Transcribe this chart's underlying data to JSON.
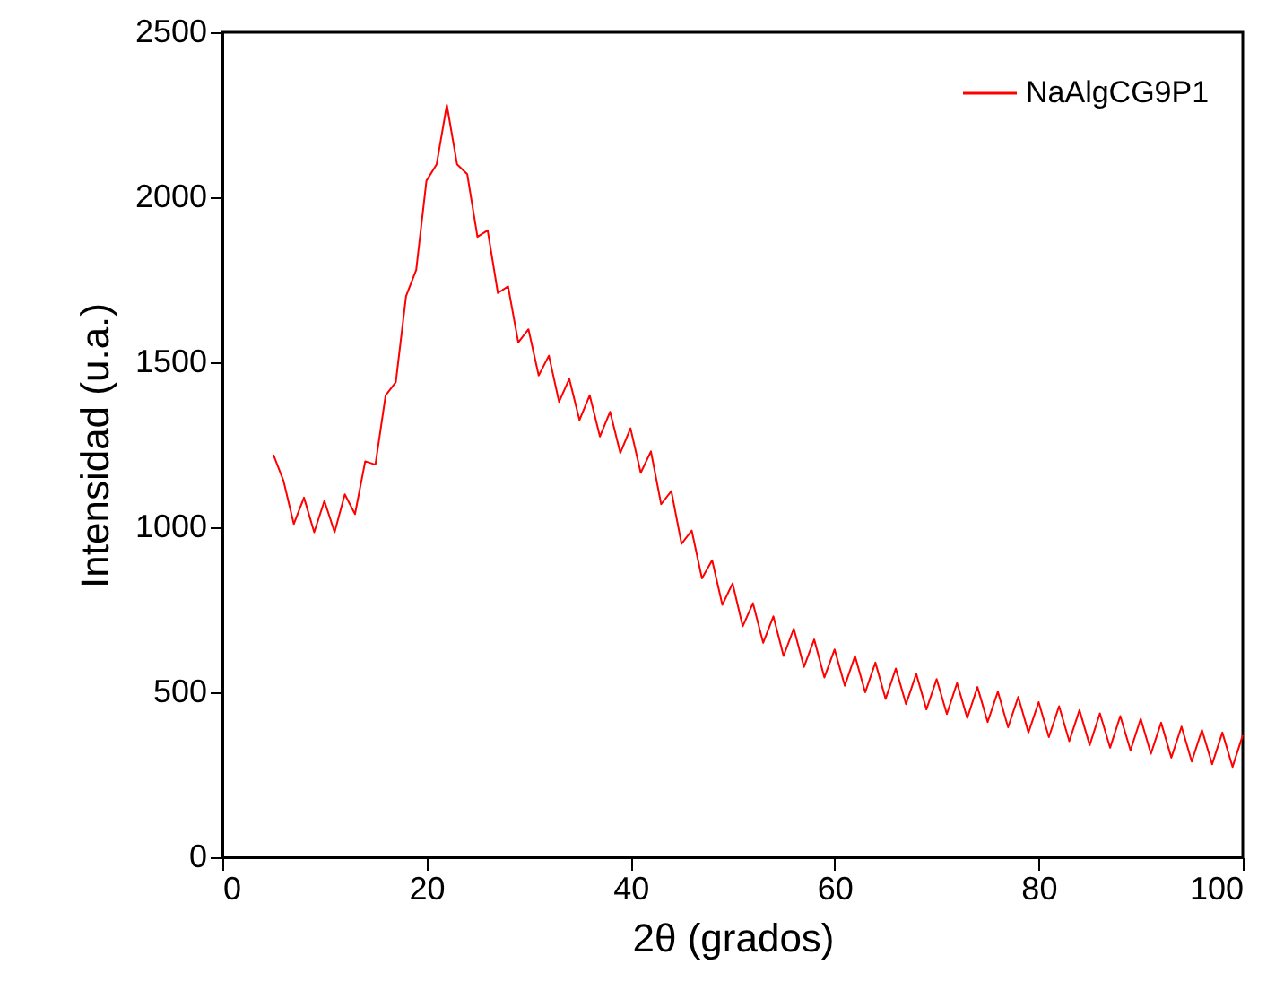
{
  "chart_data": {
    "type": "line",
    "xlabel": "2θ (grados)",
    "ylabel": "Intensidad (u.a.)",
    "xlim": [
      0,
      100
    ],
    "xticks": [
      0,
      20,
      40,
      60,
      80,
      100
    ],
    "ylim": [
      0,
      2500
    ],
    "yticks": [
      0,
      500,
      1000,
      1500,
      2000,
      2500
    ],
    "grid": false,
    "legend": "top right",
    "series": [
      {
        "name": "NaAlgCG9P1",
        "color": "#ff0000",
        "x": [
          5,
          6,
          7,
          8,
          9,
          10,
          11,
          12,
          13,
          14,
          15,
          16,
          17,
          18,
          19,
          20,
          21,
          22,
          23,
          24,
          25,
          26,
          27,
          28,
          29,
          30,
          31,
          32,
          33,
          34,
          35,
          36,
          37,
          38,
          39,
          40,
          41,
          42,
          43,
          44,
          45,
          46,
          47,
          48,
          49,
          50,
          51,
          52,
          53,
          54,
          55,
          56,
          57,
          58,
          59,
          60,
          61,
          62,
          63,
          64,
          65,
          66,
          67,
          68,
          69,
          70,
          71,
          72,
          73,
          74,
          75,
          76,
          77,
          78,
          79,
          80,
          81,
          82,
          83,
          84,
          85,
          86,
          87,
          88,
          89,
          90,
          91,
          92,
          93,
          94,
          95,
          96,
          97,
          98,
          99,
          100
        ],
        "values": [
          1220,
          1140,
          1010,
          1090,
          985,
          1080,
          985,
          1100,
          1040,
          1200,
          1190,
          1400,
          1440,
          1700,
          1780,
          2050,
          2100,
          2280,
          2100,
          2070,
          1880,
          1900,
          1710,
          1730,
          1560,
          1600,
          1460,
          1520,
          1380,
          1450,
          1325,
          1400,
          1275,
          1350,
          1225,
          1300,
          1165,
          1230,
          1070,
          1110,
          950,
          990,
          845,
          900,
          765,
          830,
          700,
          770,
          650,
          730,
          610,
          693,
          577,
          660,
          545,
          630,
          520,
          610,
          500,
          590,
          480,
          572,
          464,
          556,
          448,
          540,
          434,
          528,
          422,
          516,
          410,
          502,
          394,
          486,
          378,
          470,
          364,
          458,
          352,
          446,
          340,
          436,
          332,
          428,
          324,
          420,
          314,
          408,
          302,
          396,
          290,
          386,
          282,
          378,
          274,
          370
        ]
      }
    ]
  }
}
